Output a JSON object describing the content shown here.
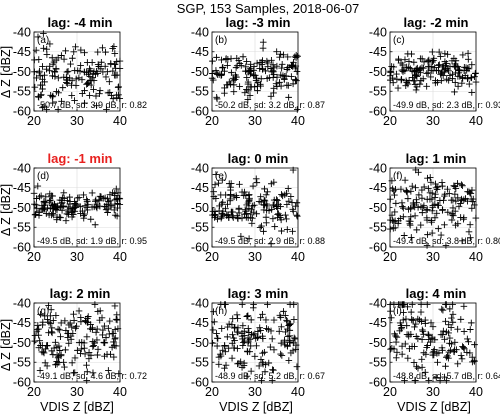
{
  "figure": {
    "suptitle": "SGP,  153 Samples, 2018-06-07",
    "ylabel": "Δ Z [dBZ]",
    "xlabel": "VDIS Z [dBZ]",
    "highlight_color": "#e8211f",
    "marker_color": "#000000",
    "panel_border_color": "#000000"
  },
  "chart_data": [
    {
      "type": "scatter",
      "title": "lag: -4 min",
      "panel_label": "(a)",
      "stats": "-50.7 dB, sd: 3.9 dB, r: 0.82",
      "mean": -50.7,
      "sd": 3.9,
      "r": 0.82,
      "xlim": [
        20,
        40
      ],
      "ylim": [
        -60,
        -40
      ],
      "xticks": [
        20,
        30,
        40
      ],
      "yticks": [
        -60,
        -55,
        -50,
        -45,
        -40
      ],
      "grid": true,
      "marker": "+",
      "highlighted": false,
      "n": 153
    },
    {
      "type": "scatter",
      "title": "lag: -3 min",
      "panel_label": "(b)",
      "stats": "-50.2 dB, sd: 3.2 dB, r: 0.87",
      "mean": -50.2,
      "sd": 3.2,
      "r": 0.87,
      "xlim": [
        20,
        40
      ],
      "ylim": [
        -60,
        -40
      ],
      "xticks": [
        20,
        30,
        40
      ],
      "yticks": [
        -60,
        -55,
        -50,
        -45,
        -40
      ],
      "grid": true,
      "marker": "+",
      "highlighted": false,
      "n": 153
    },
    {
      "type": "scatter",
      "title": "lag: -2 min",
      "panel_label": "(c)",
      "stats": "-49.9 dB, sd: 2.3 dB, r: 0.93",
      "mean": -49.9,
      "sd": 2.3,
      "r": 0.93,
      "xlim": [
        20,
        40
      ],
      "ylim": [
        -60,
        -40
      ],
      "xticks": [
        20,
        30,
        40
      ],
      "yticks": [
        -60,
        -55,
        -50,
        -45,
        -40
      ],
      "grid": true,
      "marker": "+",
      "highlighted": false,
      "n": 153
    },
    {
      "type": "scatter",
      "title": "lag: -1 min",
      "panel_label": "(d)",
      "stats": "-49.5 dB, sd: 1.9 dB, r: 0.95",
      "mean": -49.5,
      "sd": 1.9,
      "r": 0.95,
      "xlim": [
        20,
        40
      ],
      "ylim": [
        -60,
        -40
      ],
      "xticks": [
        20,
        30,
        40
      ],
      "yticks": [
        -60,
        -55,
        -50,
        -45,
        -40
      ],
      "grid": true,
      "marker": "+",
      "highlighted": true,
      "n": 153
    },
    {
      "type": "scatter",
      "title": "lag: 0 min",
      "panel_label": "(e)",
      "stats": "-49.5 dB, sd: 2.9 dB, r: 0.88",
      "mean": -49.5,
      "sd": 2.9,
      "r": 0.88,
      "xlim": [
        20,
        40
      ],
      "ylim": [
        -60,
        -40
      ],
      "xticks": [
        20,
        30,
        40
      ],
      "yticks": [
        -60,
        -55,
        -50,
        -45,
        -40
      ],
      "grid": true,
      "marker": "+",
      "highlighted": false,
      "n": 153
    },
    {
      "type": "scatter",
      "title": "lag: 1 min",
      "panel_label": "(f)",
      "stats": "-49.4 dB, sd: 3.8 dB, r: 0.80",
      "mean": -49.4,
      "sd": 3.8,
      "r": 0.8,
      "xlim": [
        20,
        40
      ],
      "ylim": [
        -60,
        -40
      ],
      "xticks": [
        20,
        30,
        40
      ],
      "yticks": [
        -60,
        -55,
        -50,
        -45,
        -40
      ],
      "grid": true,
      "marker": "+",
      "highlighted": false,
      "n": 153
    },
    {
      "type": "scatter",
      "title": "lag: 2 min",
      "panel_label": "(g)",
      "stats": "-49.1 dB, sd: 4.6 dB, r: 0.72",
      "mean": -49.1,
      "sd": 4.6,
      "r": 0.72,
      "xlim": [
        20,
        40
      ],
      "ylim": [
        -60,
        -40
      ],
      "xticks": [
        20,
        30,
        40
      ],
      "yticks": [
        -60,
        -55,
        -50,
        -45,
        -40
      ],
      "grid": true,
      "marker": "+",
      "highlighted": false,
      "n": 153
    },
    {
      "type": "scatter",
      "title": "lag: 3 min",
      "panel_label": "(h)",
      "stats": "-48.9 dB, sd: 5.2 dB, r: 0.67",
      "mean": -48.9,
      "sd": 5.2,
      "r": 0.67,
      "xlim": [
        20,
        40
      ],
      "ylim": [
        -60,
        -40
      ],
      "xticks": [
        20,
        30,
        40
      ],
      "yticks": [
        -60,
        -55,
        -50,
        -45,
        -40
      ],
      "grid": true,
      "marker": "+",
      "highlighted": false,
      "n": 153
    },
    {
      "type": "scatter",
      "title": "lag: 4 min",
      "panel_label": "(i)",
      "stats": "-48.8 dB, sd: 5.7 dB, r: 0.64",
      "mean": -48.8,
      "sd": 5.7,
      "r": 0.64,
      "xlim": [
        20,
        40
      ],
      "ylim": [
        -60,
        -40
      ],
      "xticks": [
        20,
        30,
        40
      ],
      "yticks": [
        -60,
        -55,
        -50,
        -45,
        -40
      ],
      "grid": true,
      "marker": "+",
      "highlighted": false,
      "n": 153
    }
  ]
}
